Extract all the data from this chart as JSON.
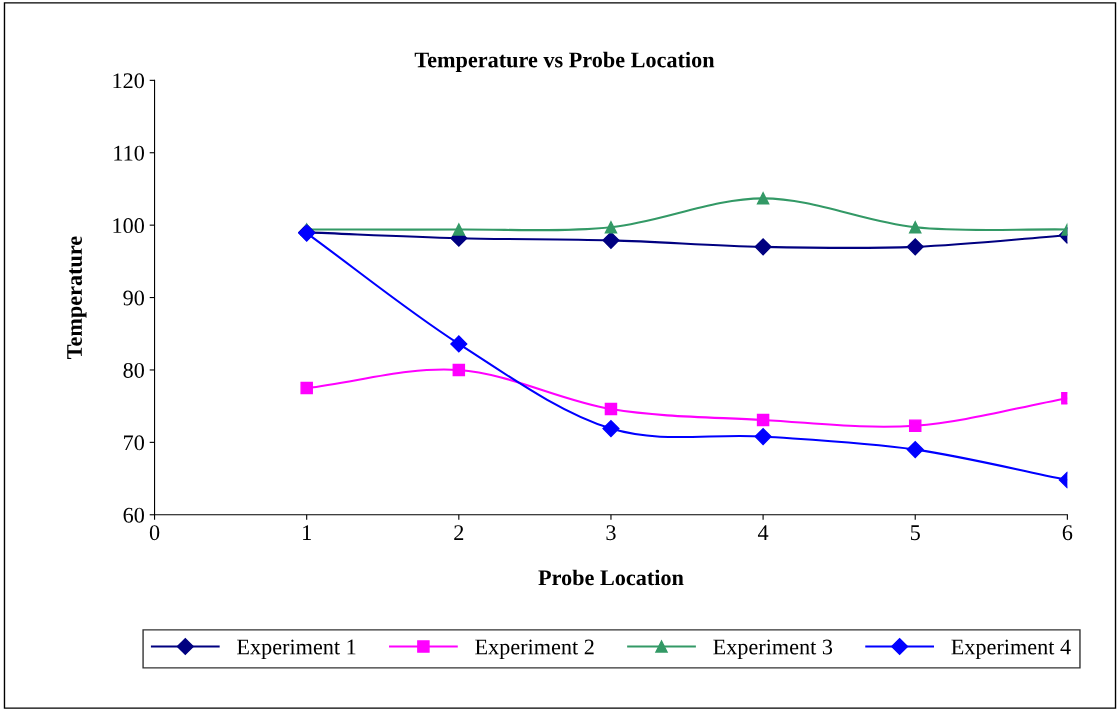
{
  "chart_data": {
    "type": "line",
    "title": "Temperature vs Probe Location",
    "xlabel": "Probe Location",
    "ylabel": "Temperature",
    "x": [
      1,
      2,
      3,
      4,
      5,
      6
    ],
    "series": [
      {
        "name": "Experiment 1",
        "color": "#000080",
        "marker": "diamond",
        "values": [
          99.0,
          98.2,
          97.9,
          97.0,
          97.0,
          98.6
        ]
      },
      {
        "name": "Experiment 2",
        "color": "#ff00ff",
        "marker": "square",
        "values": [
          77.5,
          80.0,
          74.6,
          73.1,
          72.3,
          76.1
        ]
      },
      {
        "name": "Experiment 3",
        "color": "#339966",
        "marker": "triangle",
        "values": [
          99.4,
          99.4,
          99.7,
          103.7,
          99.7,
          99.4
        ]
      },
      {
        "name": "Experiment 4",
        "color": "#0000ff",
        "marker": "diamond",
        "values": [
          98.9,
          83.6,
          71.9,
          70.8,
          69.0,
          64.8
        ]
      }
    ],
    "xlim": [
      0,
      6
    ],
    "xticks": [
      0,
      1,
      2,
      3,
      4,
      5,
      6
    ],
    "ylim": [
      60,
      120
    ],
    "yticks": [
      60,
      70,
      80,
      90,
      100,
      110,
      120
    ],
    "grid": false,
    "legend": "bottom",
    "line_style": "solid"
  }
}
